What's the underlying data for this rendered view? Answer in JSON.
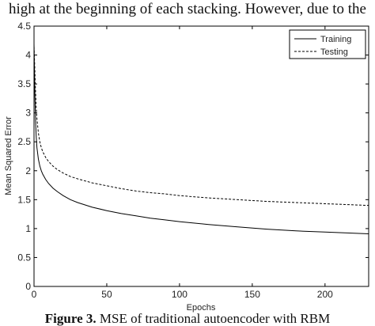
{
  "context": {
    "top_text": "high at the beginning of each stacking. However, due to the",
    "caption_label": "Figure 3.",
    "caption_text": " MSE of traditional autoencoder with RBM"
  },
  "chart_data": {
    "type": "line",
    "title": "",
    "xlabel": "Epochs",
    "ylabel": "Mean Squared Error",
    "xlim": [
      0,
      230
    ],
    "ylim": [
      0,
      4.5
    ],
    "xticks": [
      0,
      50,
      100,
      150,
      200
    ],
    "yticks": [
      0,
      0.5,
      1,
      1.5,
      2,
      2.5,
      3,
      3.5,
      4,
      4.5
    ],
    "grid": false,
    "legend_position": "top-right",
    "series": [
      {
        "name": "Training",
        "style": "solid",
        "color": "#000000",
        "x": [
          0,
          0.5,
          1,
          1.5,
          2,
          3,
          4,
          5,
          6,
          8,
          10,
          13,
          16,
          20,
          25,
          30,
          40,
          50,
          60,
          70,
          80,
          90,
          100,
          120,
          140,
          160,
          180,
          200,
          220,
          230
        ],
        "y": [
          4.2,
          3.4,
          2.9,
          2.6,
          2.4,
          2.2,
          2.08,
          2.0,
          1.94,
          1.85,
          1.78,
          1.7,
          1.64,
          1.57,
          1.5,
          1.45,
          1.37,
          1.31,
          1.26,
          1.22,
          1.18,
          1.15,
          1.12,
          1.07,
          1.03,
          0.99,
          0.96,
          0.94,
          0.92,
          0.91
        ]
      },
      {
        "name": "Testing",
        "style": "dashed",
        "color": "#000000",
        "x": [
          0,
          0.5,
          1,
          1.5,
          2,
          3,
          4,
          5,
          6,
          8,
          10,
          13,
          16,
          20,
          25,
          30,
          40,
          50,
          60,
          70,
          80,
          90,
          100,
          120,
          140,
          160,
          180,
          200,
          220,
          230
        ],
        "y": [
          4.15,
          3.8,
          3.4,
          3.1,
          2.9,
          2.65,
          2.5,
          2.4,
          2.33,
          2.23,
          2.16,
          2.08,
          2.02,
          1.96,
          1.9,
          1.86,
          1.79,
          1.74,
          1.69,
          1.65,
          1.62,
          1.6,
          1.57,
          1.53,
          1.5,
          1.47,
          1.45,
          1.43,
          1.41,
          1.4
        ]
      }
    ]
  }
}
